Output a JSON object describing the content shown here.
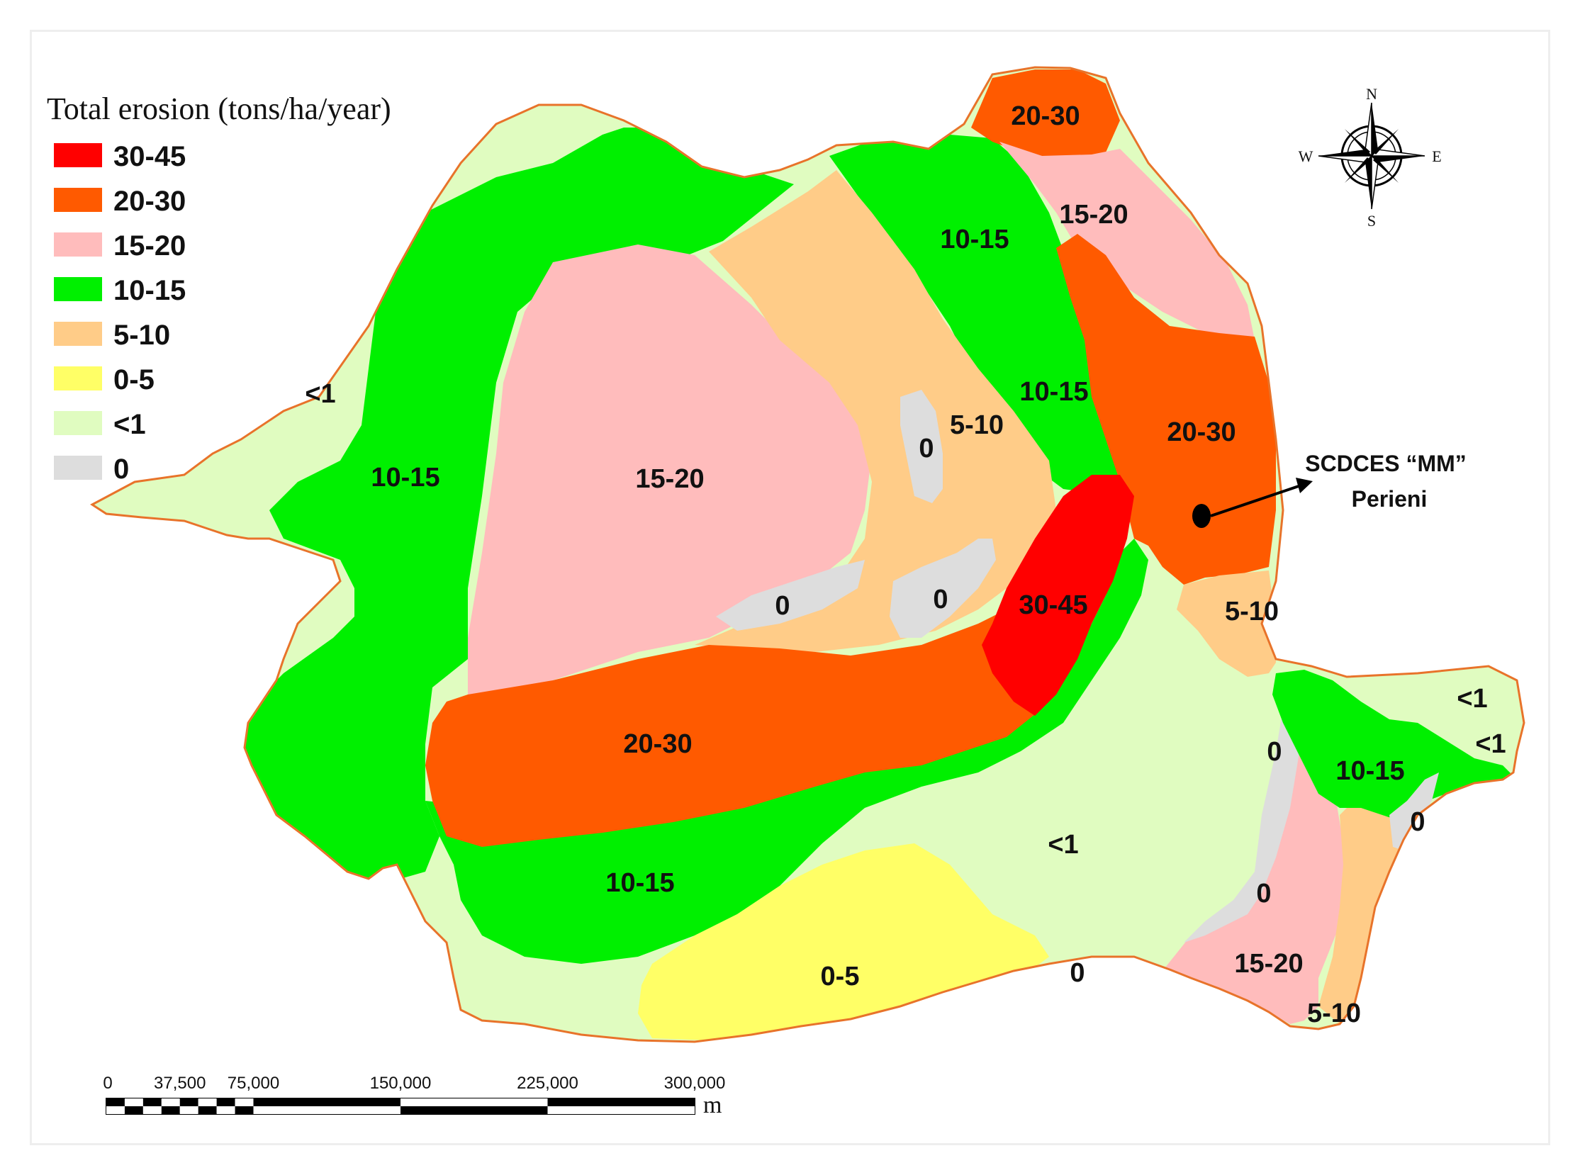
{
  "legend": {
    "title": "Total erosion (tons/ha/year)",
    "classes": [
      {
        "label": "30-45",
        "color": "#ff0000"
      },
      {
        "label": "20-30",
        "color": "#ff5a00"
      },
      {
        "label": "15-20",
        "color": "#ffbcbc"
      },
      {
        "label": "10-15",
        "color": "#00f000"
      },
      {
        "label": "5-10",
        "color": "#ffcc88"
      },
      {
        "label": "0-5",
        "color": "#ffff66"
      },
      {
        "label": "<1",
        "color": "#e0fcc0"
      },
      {
        "label": "0",
        "color": "#dddddd"
      }
    ]
  },
  "zones": {
    "lt1_west": "<1",
    "g10_15_west": "10-15",
    "p15_20_center": "15-20",
    "o20_30_ne": "20-30",
    "p15_20_ne": "15-20",
    "g10_15_north": "10-15",
    "g10_15_east": "10-15",
    "t5_10_center": "5-10",
    "z0_a": "0",
    "z0_b": "0",
    "z0_c": "0",
    "o20_30_east": "20-30",
    "r30_45": "30-45",
    "t5_10_east": "5-10",
    "o20_30_south": "20-30",
    "g10_15_south": "10-15",
    "lt1_south": "<1",
    "y0_5": "0-5",
    "z0_d": "0",
    "z0_e": "0",
    "z0_f": "0",
    "g10_15_delta": "10-15",
    "lt1_delta_a": "<1",
    "lt1_delta_b": "<1",
    "z0_g": "0",
    "p15_20_se": "15-20",
    "t5_10_se": "5-10"
  },
  "callout": {
    "line1": "SCDCES “MM”",
    "line2": "Perieni"
  },
  "compass": {
    "n": "N",
    "s": "S",
    "e": "E",
    "w": "W"
  },
  "scale_bar": {
    "ticks": [
      "0",
      "37,500",
      "75,000",
      "150,000",
      "225,000",
      "300,000"
    ],
    "unit": "m"
  },
  "colors": {
    "border": "#e8732a",
    "frame": "#eeeeee"
  }
}
